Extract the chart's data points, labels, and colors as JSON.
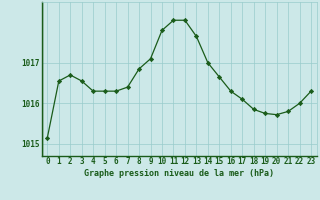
{
  "x": [
    0,
    1,
    2,
    3,
    4,
    5,
    6,
    7,
    8,
    9,
    10,
    11,
    12,
    13,
    14,
    15,
    16,
    17,
    18,
    19,
    20,
    21,
    22,
    23
  ],
  "y": [
    1015.15,
    1016.55,
    1016.7,
    1016.55,
    1016.3,
    1016.3,
    1016.3,
    1016.4,
    1016.85,
    1017.1,
    1017.8,
    1018.05,
    1018.05,
    1017.65,
    1017.0,
    1016.65,
    1016.3,
    1016.1,
    1015.85,
    1015.75,
    1015.72,
    1015.8,
    1016.0,
    1016.3
  ],
  "line_color": "#1a5c1a",
  "marker": "D",
  "marker_size": 2.2,
  "bg_color": "#cce8e8",
  "grid_color": "#99cccc",
  "xlabel": "Graphe pression niveau de la mer (hPa)",
  "xlabel_color": "#1a5c1a",
  "tick_color": "#1a5c1a",
  "yticks": [
    1015,
    1016,
    1017
  ],
  "ylim": [
    1014.7,
    1018.5
  ],
  "xlim": [
    -0.5,
    23.5
  ],
  "tick_fontsize": 5.5,
  "xlabel_fontsize": 6.0
}
